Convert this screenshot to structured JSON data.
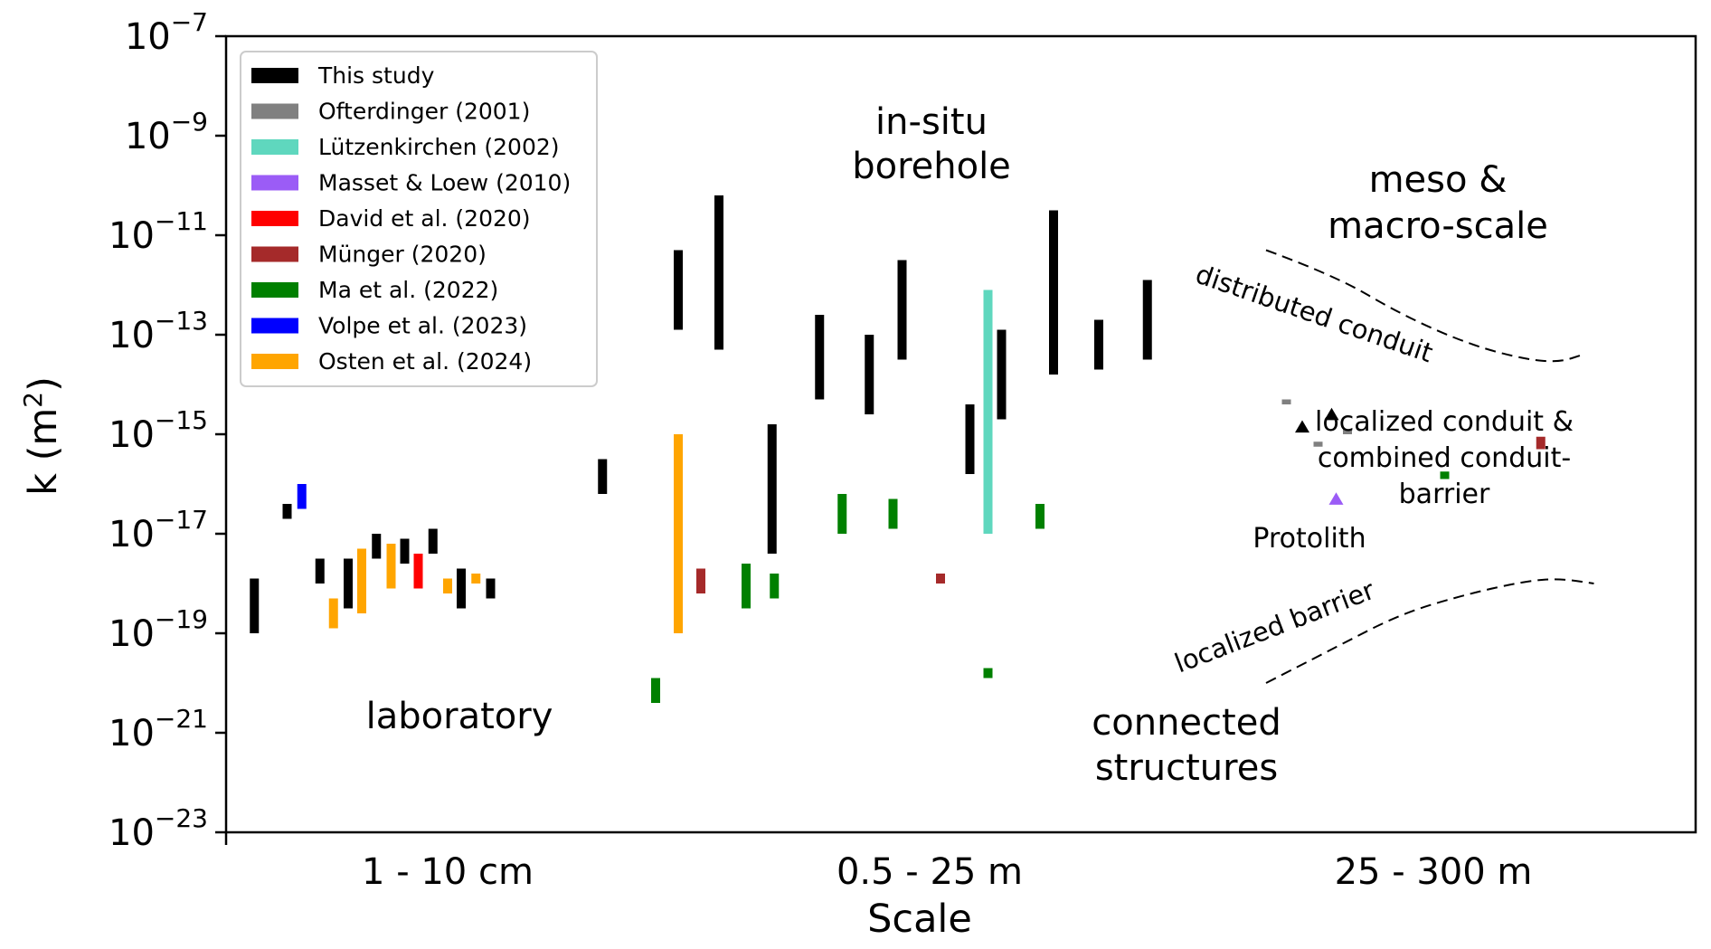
{
  "chart_data": {
    "type": "range-bar",
    "xlabel": "Scale",
    "ylabel_main": "k (m",
    "ylabel_sup": "2",
    "ylabel_end": ")",
    "yscale": "log",
    "ylim": [
      1e-23,
      1e-07
    ],
    "x_categories": [
      "1 - 10 cm",
      "0.5 - 25 m",
      "25 - 300 m"
    ],
    "y_ticks": [
      {
        "exp": -7,
        "base": "10",
        "sup": "−7"
      },
      {
        "exp": -9,
        "base": "10",
        "sup": "−9"
      },
      {
        "exp": -11,
        "base": "10",
        "sup": "−11"
      },
      {
        "exp": -13,
        "base": "10",
        "sup": "−13"
      },
      {
        "exp": -15,
        "base": "10",
        "sup": "−15"
      },
      {
        "exp": -17,
        "base": "10",
        "sup": "−17"
      },
      {
        "exp": -19,
        "base": "10",
        "sup": "−19"
      },
      {
        "exp": -21,
        "base": "10",
        "sup": "−21"
      },
      {
        "exp": -23,
        "base": "10",
        "sup": "−23"
      }
    ],
    "legend": {
      "position": "upper-left",
      "entries": [
        {
          "label": "This study",
          "color": "#000000"
        },
        {
          "label": "Ofterdinger (2001)",
          "color": "#808080"
        },
        {
          "label": "Lützenkirchen (2002)",
          "color": "#5fd7be"
        },
        {
          "label": "Masset & Loew (2010)",
          "color": "#9b5cf6"
        },
        {
          "label": "David et al. (2020)",
          "color": "#ff0000"
        },
        {
          "label": "Münger (2020)",
          "color": "#a52a2a"
        },
        {
          "label": "Ma et al. (2022)",
          "color": "#008000"
        },
        {
          "label": "Volpe et al. (2023)",
          "color": "#0000ff"
        },
        {
          "label": "Osten et al. (2024)",
          "color": "#ffa500"
        }
      ]
    },
    "ranges": [
      {
        "x": 0.25,
        "lo": -19.0,
        "hi": -17.9,
        "color": "#000000"
      },
      {
        "x": 0.54,
        "lo": -16.7,
        "hi": -16.4,
        "color": "#000000"
      },
      {
        "x": 0.67,
        "lo": -16.5,
        "hi": -16.0,
        "color": "#0000ff"
      },
      {
        "x": 0.83,
        "lo": -18.0,
        "hi": -17.5,
        "color": "#000000"
      },
      {
        "x": 0.95,
        "lo": -18.9,
        "hi": -18.3,
        "color": "#ffa500"
      },
      {
        "x": 1.08,
        "lo": -18.5,
        "hi": -17.5,
        "color": "#000000"
      },
      {
        "x": 1.2,
        "lo": -18.6,
        "hi": -17.3,
        "color": "#ffa500"
      },
      {
        "x": 1.33,
        "lo": -17.5,
        "hi": -17.0,
        "color": "#000000"
      },
      {
        "x": 1.46,
        "lo": -18.1,
        "hi": -17.2,
        "color": "#ffa500"
      },
      {
        "x": 1.58,
        "lo": -17.6,
        "hi": -17.1,
        "color": "#000000"
      },
      {
        "x": 1.7,
        "lo": -18.1,
        "hi": -17.4,
        "color": "#ff0000"
      },
      {
        "x": 1.83,
        "lo": -17.4,
        "hi": -16.9,
        "color": "#000000"
      },
      {
        "x": 1.96,
        "lo": -18.2,
        "hi": -17.9,
        "color": "#ffa500"
      },
      {
        "x": 2.08,
        "lo": -18.5,
        "hi": -17.7,
        "color": "#000000"
      },
      {
        "x": 2.21,
        "lo": -18.0,
        "hi": -17.8,
        "color": "#ffa500"
      },
      {
        "x": 2.34,
        "lo": -18.3,
        "hi": -17.9,
        "color": "#000000"
      },
      {
        "x": 2.92,
        "lo": -13.0,
        "hi": -12.9,
        "color": "#000000"
      },
      {
        "x": 3.33,
        "lo": -16.2,
        "hi": -15.5,
        "color": "#000000"
      },
      {
        "x": 3.8,
        "lo": -20.4,
        "hi": -19.9,
        "color": "#008000"
      },
      {
        "x": 4.0,
        "lo": -19.0,
        "hi": -15.0,
        "color": "#ffa500"
      },
      {
        "x": 4.0,
        "lo": -12.9,
        "hi": -11.3,
        "color": "#000000"
      },
      {
        "x": 4.2,
        "lo": -18.2,
        "hi": -17.7,
        "color": "#a52a2a"
      },
      {
        "x": 4.36,
        "lo": -13.3,
        "hi": -10.2,
        "color": "#000000"
      },
      {
        "x": 4.6,
        "lo": -18.5,
        "hi": -17.6,
        "color": "#008000"
      },
      {
        "x": 4.83,
        "lo": -17.4,
        "hi": -14.8,
        "color": "#000000"
      },
      {
        "x": 4.85,
        "lo": -18.3,
        "hi": -17.8,
        "color": "#008000"
      },
      {
        "x": 5.25,
        "lo": -14.3,
        "hi": -12.6,
        "color": "#000000"
      },
      {
        "x": 5.45,
        "lo": -17.0,
        "hi": -16.2,
        "color": "#008000"
      },
      {
        "x": 5.69,
        "lo": -14.6,
        "hi": -13.0,
        "color": "#000000"
      },
      {
        "x": 5.9,
        "lo": -16.9,
        "hi": -16.3,
        "color": "#008000"
      },
      {
        "x": 5.98,
        "lo": -13.5,
        "hi": -11.5,
        "color": "#000000"
      },
      {
        "x": 6.32,
        "lo": -18.0,
        "hi": -17.8,
        "color": "#a52a2a"
      },
      {
        "x": 6.58,
        "lo": -15.8,
        "hi": -14.4,
        "color": "#000000"
      },
      {
        "x": 6.74,
        "lo": -17.0,
        "hi": -12.1,
        "color": "#5fd7be"
      },
      {
        "x": 6.74,
        "lo": -19.9,
        "hi": -19.7,
        "color": "#008000"
      },
      {
        "x": 6.86,
        "lo": -14.7,
        "hi": -12.9,
        "color": "#000000"
      },
      {
        "x": 7.2,
        "lo": -16.9,
        "hi": -16.4,
        "color": "#008000"
      },
      {
        "x": 7.32,
        "lo": -13.8,
        "hi": -10.5,
        "color": "#000000"
      },
      {
        "x": 7.72,
        "lo": -13.7,
        "hi": -12.7,
        "color": "#000000"
      },
      {
        "x": 8.15,
        "lo": -13.5,
        "hi": -11.9,
        "color": "#000000"
      },
      {
        "x": 9.38,
        "lo": -14.4,
        "hi": -14.3,
        "color": "#808080"
      },
      {
        "x": 9.66,
        "lo": -15.25,
        "hi": -15.15,
        "color": "#808080"
      },
      {
        "x": 9.92,
        "lo": -15.0,
        "hi": -14.9,
        "color": "#808080"
      },
      {
        "x": 10.78,
        "lo": -15.9,
        "hi": -15.75,
        "color": "#008000"
      },
      {
        "x": 11.63,
        "lo": -15.3,
        "hi": -15.05,
        "color": "#a52a2a"
      }
    ],
    "markers": [
      {
        "x": 9.52,
        "y": -14.85,
        "color": "#000000"
      },
      {
        "x": 9.78,
        "y": -14.6,
        "color": "#000000"
      },
      {
        "x": 9.82,
        "y": -16.3,
        "color": "#9b5cf6"
      }
    ],
    "boundaries": [
      {
        "label": "distributed conduit",
        "points": [
          [
            9.2,
            -11.3
          ],
          [
            9.8,
            -11.8
          ],
          [
            10.4,
            -12.6
          ],
          [
            11.0,
            -13.2
          ],
          [
            11.5,
            -13.5
          ],
          [
            11.8,
            -13.55
          ],
          [
            12.0,
            -13.4
          ]
        ]
      },
      {
        "label": "localized barrier",
        "points": [
          [
            9.2,
            -20.0
          ],
          [
            9.8,
            -19.3
          ],
          [
            10.4,
            -18.6
          ],
          [
            11.0,
            -18.2
          ],
          [
            11.5,
            -17.95
          ],
          [
            11.8,
            -17.9
          ],
          [
            12.1,
            -18.0
          ]
        ]
      }
    ],
    "annotations": {
      "laboratory": "laboratory",
      "insitu_1": "in-situ",
      "insitu_2": "borehole",
      "meso_1": "meso &",
      "meso_2": "macro-scale",
      "distributed": "distributed conduit",
      "localized_conduit_1": "localized conduit &",
      "localized_conduit_2": "combined conduit-",
      "localized_conduit_3": "barrier",
      "protolith": "Protolith",
      "localized_barrier": "localized barrier",
      "connected_1": "connected",
      "connected_2": "structures"
    }
  }
}
